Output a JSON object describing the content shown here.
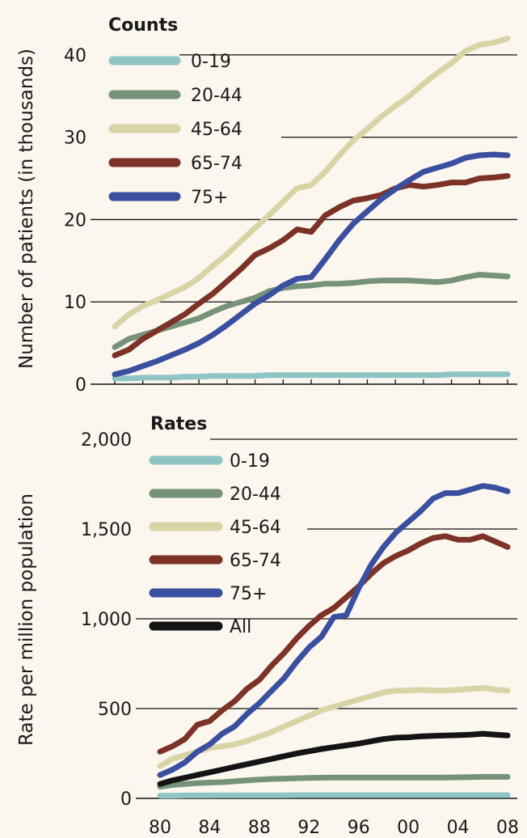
{
  "chart_data": [
    {
      "type": "line",
      "title": "Counts",
      "ylabel": "Number of patients (in thousands)",
      "ylim": [
        0,
        42
      ],
      "yticks": [
        0,
        10,
        20,
        30,
        40
      ],
      "ytick_labels": [
        "0",
        "10",
        "20",
        "30",
        "40"
      ],
      "x": [
        1980,
        1981,
        1982,
        1983,
        1984,
        1985,
        1986,
        1987,
        1988,
        1989,
        1990,
        1991,
        1992,
        1993,
        1994,
        1995,
        1996,
        1997,
        1998,
        1999,
        2000,
        2001,
        2002,
        2003,
        2004,
        2005,
        2006,
        2007,
        2008
      ],
      "grid": "horizontal",
      "legend_position": "top-left",
      "series": [
        {
          "name": "0-19",
          "color": "#8ec4c4",
          "values": [
            0.7,
            0.7,
            0.8,
            0.8,
            0.8,
            0.9,
            0.9,
            1.0,
            1.0,
            1.0,
            1.0,
            1.1,
            1.1,
            1.1,
            1.1,
            1.1,
            1.1,
            1.1,
            1.1,
            1.1,
            1.1,
            1.1,
            1.1,
            1.1,
            1.2,
            1.2,
            1.2,
            1.2,
            1.2
          ]
        },
        {
          "name": "20-44",
          "color": "#76937a",
          "values": [
            4.5,
            5.5,
            6.0,
            6.5,
            7.0,
            7.5,
            8.0,
            8.8,
            9.5,
            10.0,
            10.5,
            11.3,
            11.7,
            11.9,
            12.0,
            12.2,
            12.2,
            12.3,
            12.5,
            12.6,
            12.6,
            12.6,
            12.5,
            12.4,
            12.6,
            13.0,
            13.3,
            13.2,
            13.1
          ]
        },
        {
          "name": "45-64",
          "color": "#d8d4a6",
          "values": [
            7.0,
            8.5,
            9.5,
            10.2,
            11.0,
            11.8,
            12.9,
            14.4,
            15.8,
            17.4,
            19.0,
            20.5,
            22.2,
            23.8,
            24.2,
            25.8,
            27.8,
            29.6,
            31.0,
            32.5,
            33.8,
            35.0,
            36.5,
            37.8,
            39.0,
            40.5,
            41.2,
            41.5,
            42.0
          ]
        },
        {
          "name": "65-74",
          "color": "#7c3226",
          "values": [
            3.5,
            4.2,
            5.5,
            6.5,
            7.5,
            8.5,
            9.8,
            11.0,
            12.5,
            14.0,
            15.7,
            16.5,
            17.5,
            18.8,
            18.5,
            20.5,
            21.5,
            22.3,
            22.6,
            23.0,
            23.8,
            24.2,
            24.0,
            24.2,
            24.5,
            24.5,
            25.0,
            25.1,
            25.3
          ]
        },
        {
          "name": "75+",
          "color": "#3b4fa0",
          "values": [
            1.2,
            1.6,
            2.2,
            2.8,
            3.5,
            4.2,
            5.0,
            6.0,
            7.2,
            8.5,
            9.8,
            10.8,
            12.0,
            12.8,
            13.0,
            15.2,
            17.5,
            19.5,
            21.0,
            22.5,
            23.7,
            24.8,
            25.8,
            26.3,
            26.8,
            27.5,
            27.8,
            27.9,
            27.8
          ]
        }
      ]
    },
    {
      "type": "line",
      "title": "Rates",
      "ylabel": "Rate per million population",
      "ylim": [
        0,
        2000
      ],
      "yticks": [
        0,
        500,
        1000,
        1500,
        2000
      ],
      "ytick_labels": [
        "0",
        "500",
        "1,000",
        "1,500",
        "2,000"
      ],
      "x": [
        1980,
        1981,
        1982,
        1983,
        1984,
        1985,
        1986,
        1987,
        1988,
        1989,
        1990,
        1991,
        1992,
        1993,
        1994,
        1995,
        1996,
        1997,
        1998,
        1999,
        2000,
        2001,
        2002,
        2003,
        2004,
        2005,
        2006,
        2007,
        2008
      ],
      "xtick_labels": [
        "80",
        "84",
        "88",
        "92",
        "96",
        "00",
        "04",
        "08"
      ],
      "xtick_years": [
        1980,
        1984,
        1988,
        1992,
        1996,
        2000,
        2004,
        2008
      ],
      "grid": "horizontal",
      "legend_position": "top-left",
      "series": [
        {
          "name": "0-19",
          "color": "#8ec4c4",
          "values": [
            15,
            15,
            16,
            16,
            16,
            17,
            17,
            17,
            17,
            17,
            17,
            18,
            18,
            18,
            18,
            18,
            18,
            18,
            18,
            18,
            18,
            18,
            18,
            18,
            18,
            18,
            18,
            18,
            18
          ]
        },
        {
          "name": "20-44",
          "color": "#76937a",
          "values": [
            65,
            75,
            80,
            85,
            88,
            90,
            95,
            100,
            105,
            108,
            110,
            112,
            114,
            115,
            116,
            116,
            116,
            116,
            116,
            116,
            116,
            116,
            116,
            116,
            117,
            118,
            120,
            120,
            120
          ]
        },
        {
          "name": "45-64",
          "color": "#d8d4a6",
          "values": [
            180,
            220,
            240,
            260,
            280,
            290,
            300,
            320,
            345,
            370,
            400,
            430,
            460,
            490,
            510,
            530,
            550,
            570,
            590,
            600,
            600,
            605,
            600,
            600,
            605,
            610,
            615,
            605,
            600
          ]
        },
        {
          "name": "65-74",
          "color": "#7c3226",
          "values": [
            260,
            290,
            330,
            410,
            430,
            490,
            540,
            610,
            660,
            740,
            810,
            890,
            960,
            1020,
            1060,
            1120,
            1180,
            1250,
            1310,
            1350,
            1380,
            1420,
            1450,
            1460,
            1440,
            1440,
            1460,
            1430,
            1400
          ]
        },
        {
          "name": "75+",
          "color": "#3b4fa0",
          "values": [
            130,
            160,
            200,
            260,
            300,
            360,
            400,
            470,
            530,
            600,
            670,
            760,
            840,
            900,
            1010,
            1020,
            1170,
            1300,
            1400,
            1480,
            1540,
            1600,
            1670,
            1700,
            1700,
            1720,
            1740,
            1730,
            1710
          ]
        },
        {
          "name": "All",
          "color": "#141414",
          "values": [
            80,
            100,
            115,
            130,
            145,
            160,
            175,
            190,
            205,
            220,
            235,
            250,
            262,
            275,
            285,
            295,
            305,
            318,
            330,
            338,
            340,
            345,
            348,
            350,
            352,
            355,
            360,
            355,
            350
          ]
        }
      ]
    }
  ]
}
